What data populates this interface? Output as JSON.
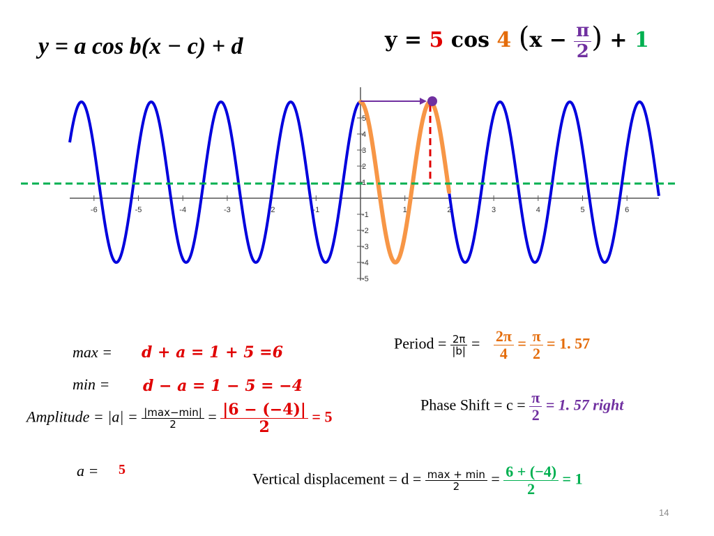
{
  "general_form": "y = a cos b(x − c) + d",
  "specific_form": {
    "lhs": "y =",
    "a": "5",
    "cos": "cos",
    "b": "4",
    "inner": "x −",
    "c_num": "π",
    "c_den": "2",
    "plus": "+",
    "d": "1"
  },
  "graph": {
    "x_tick_labels": [
      "-6",
      "-5",
      "-4",
      "-3",
      "-2",
      "-1",
      "1",
      "2",
      "3",
      "4",
      "5",
      "6"
    ],
    "y_tick_labels": [
      "5",
      "4",
      "3",
      "2",
      "1",
      "-1",
      "-2",
      "-3",
      "-4",
      "-5"
    ]
  },
  "max": {
    "label": "max =",
    "expr": "d + a = 1 + 5 =6"
  },
  "min": {
    "label": "min =",
    "expr": "d − a = 1 − 5 = −4"
  },
  "amplitude": {
    "label": "Amplitude = |a| =",
    "frac_num": "|max−min|",
    "frac_den": "2",
    "eq": "=",
    "num": "|6 − (−4)|",
    "den": "2",
    "result": "= 5"
  },
  "a_value": {
    "label": "a =",
    "value": "5"
  },
  "period": {
    "label": "Period =",
    "frac_num": "2π",
    "frac_den": "|b|",
    "eq": "=",
    "num": "2π",
    "den": "4",
    "eq2": "=",
    "num2": "π",
    "den2": "2",
    "result": "= 1. 57"
  },
  "phase_shift": {
    "label": "Phase Shift = c =",
    "num": "π",
    "den": "2",
    "result": "= 1. 57 right"
  },
  "vertical": {
    "label": "Vertical displacement = d =",
    "frac_num": "max + min",
    "frac_den": "2",
    "eq": "=",
    "num": "6 + (−4)",
    "den": "2",
    "result": "= 1"
  },
  "page_number": "14"
}
